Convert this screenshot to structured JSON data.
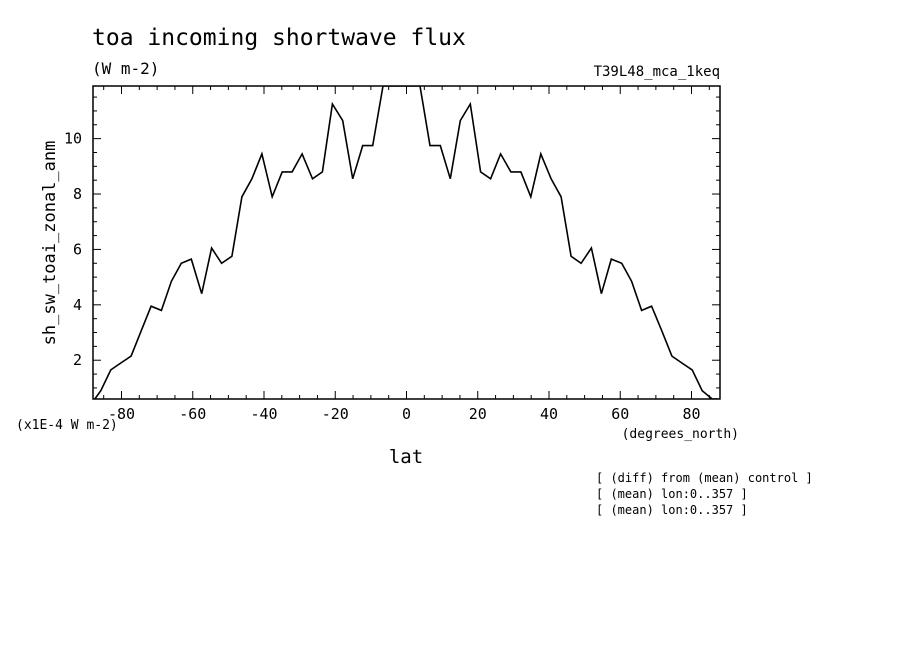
{
  "chart_data": {
    "type": "line",
    "title": "toa incoming shortwave flux",
    "subtitle": "(W m-2)",
    "experiment": "T39L48_mca_1keq",
    "ylabel": "sh_sw_toai_zonal_anm",
    "yunits": "(x1E-4 W m-2)",
    "xlabel": "lat",
    "xunits": "(degrees_north)",
    "xlim": [
      -88,
      88
    ],
    "ylim": [
      0.6,
      11.9
    ],
    "xticks": [
      -80,
      -60,
      -40,
      -20,
      0,
      20,
      40,
      60,
      80
    ],
    "xtick_labels": [
      "-80",
      "-60",
      "-40",
      "-20",
      "0",
      "20",
      "40",
      "60",
      "80"
    ],
    "yticks": [
      2,
      4,
      6,
      8,
      10
    ],
    "ytick_labels": [
      "2",
      "4",
      "6",
      "8",
      "10"
    ],
    "grid": false,
    "notes": [
      "[ (diff) from (mean) control ]",
      "[ (mean) lon:0..357 ]",
      "[ (mean) lon:0..357 ]"
    ],
    "series": [
      {
        "x": [
          -87.5,
          -85.8,
          -83,
          -80.2,
          -77.3,
          -74.5,
          -71.7,
          -68.8,
          -66,
          -63.2,
          -60.4,
          -57.5,
          -54.7,
          -51.9,
          -49,
          -46.2,
          -43.4,
          -40.6,
          -37.7,
          -34.9,
          -32.1,
          -29.3,
          -26.4,
          -23.6,
          -20.8,
          -17.9,
          -15.1,
          -12.3,
          -9.5,
          -6.6,
          -3.8,
          -1.4,
          0,
          1.4,
          3.8,
          6.6,
          9.5,
          12.3,
          15.1,
          17.9,
          20.8,
          23.6,
          26.4,
          29.3,
          32.1,
          34.9,
          37.7,
          40.6,
          43.4,
          46.2,
          49,
          51.9,
          54.7,
          57.5,
          60.4,
          63.2,
          66,
          68.8,
          71.7,
          74.5,
          77.3,
          80.2,
          83,
          85.8,
          87.5
        ],
        "y": [
          0.6,
          0.9,
          1.65,
          1.9,
          2.15,
          3.05,
          3.95,
          3.8,
          4.85,
          5.5,
          5.65,
          4.4,
          6.05,
          5.5,
          5.75,
          7.9,
          8.55,
          9.45,
          7.9,
          8.8,
          8.8,
          9.45,
          8.55,
          8.8,
          11.25,
          10.65,
          8.55,
          9.75,
          9.75,
          11.9,
          11.9,
          11.9,
          11.9,
          11.9,
          11.9,
          9.75,
          9.75,
          8.55,
          10.65,
          11.25,
          8.8,
          8.55,
          9.45,
          8.8,
          8.8,
          7.9,
          9.45,
          8.55,
          7.9,
          5.75,
          5.5,
          6.05,
          4.4,
          5.65,
          5.5,
          4.85,
          3.8,
          3.95,
          3.05,
          2.15,
          1.9,
          1.65,
          0.9,
          0.6,
          0.6
        ]
      }
    ]
  }
}
